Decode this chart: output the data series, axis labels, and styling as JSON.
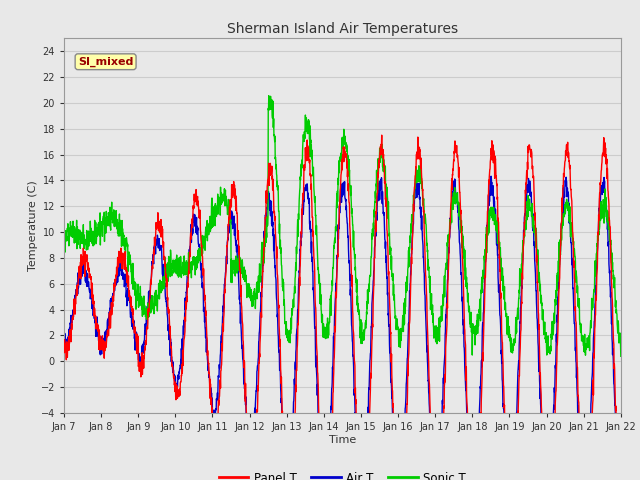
{
  "title": "Sherman Island Air Temperatures",
  "xlabel": "Time",
  "ylabel": "Temperature (C)",
  "ylim": [
    -4,
    25
  ],
  "yticks": [
    -4,
    -2,
    0,
    2,
    4,
    6,
    8,
    10,
    12,
    14,
    16,
    18,
    20,
    22,
    24
  ],
  "xtick_labels": [
    "Jan 7",
    "Jan 8",
    "Jan 9",
    "Jan 10",
    "Jan 11",
    "Jan 12",
    "Jan 13",
    "Jan 14",
    "Jan 15",
    "Jan 16",
    "Jan 17",
    "Jan 18",
    "Jan 19",
    "Jan 20",
    "Jan 21",
    "Jan 22"
  ],
  "annotation_text": "SI_mixed",
  "bg_color": "#e8e8e8",
  "plot_bg": "#e8e8e8",
  "grid_color": "#cccccc",
  "panel_color": "#ff0000",
  "air_color": "#0000cc",
  "sonic_color": "#00cc00",
  "legend_labels": [
    "Panel T",
    "Air T",
    "Sonic T"
  ],
  "line_width": 1.0,
  "num_days": 15,
  "points_per_day": 144,
  "title_fontsize": 10,
  "label_fontsize": 8,
  "tick_fontsize": 7
}
